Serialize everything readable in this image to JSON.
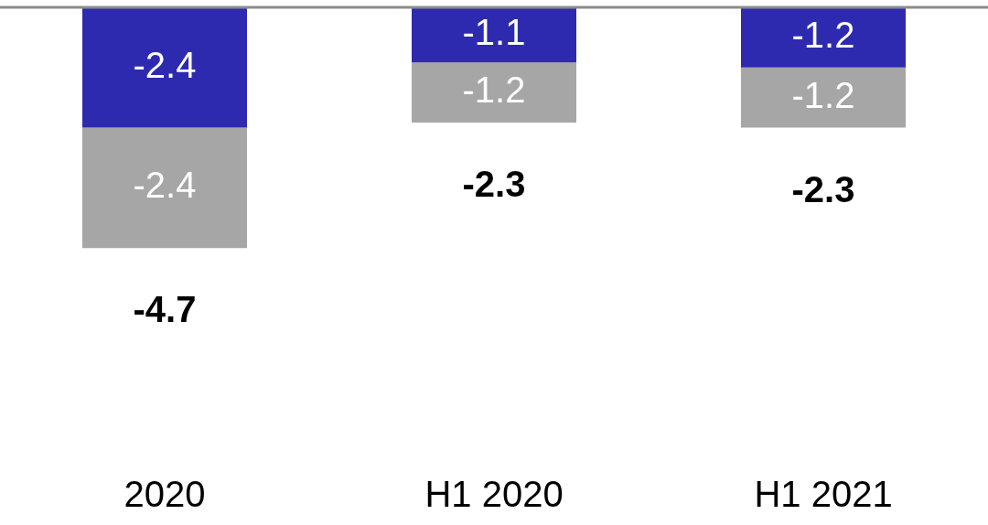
{
  "chart_data": {
    "type": "bar",
    "categories": [
      "2020",
      "H1 2020",
      "H1 2021"
    ],
    "stacked": true,
    "data_labels": true,
    "series": [
      {
        "color": "#2e2ab0",
        "values": [
          -2.4,
          -1.1,
          -1.2
        ]
      },
      {
        "color": "#a6a6a6",
        "values": [
          -2.4,
          -1.2,
          -1.2
        ]
      }
    ],
    "totals": [
      "-4.7",
      "-2.3",
      "-2.3"
    ],
    "tick_labels": "x",
    "grid": false,
    "legend": false
  }
}
